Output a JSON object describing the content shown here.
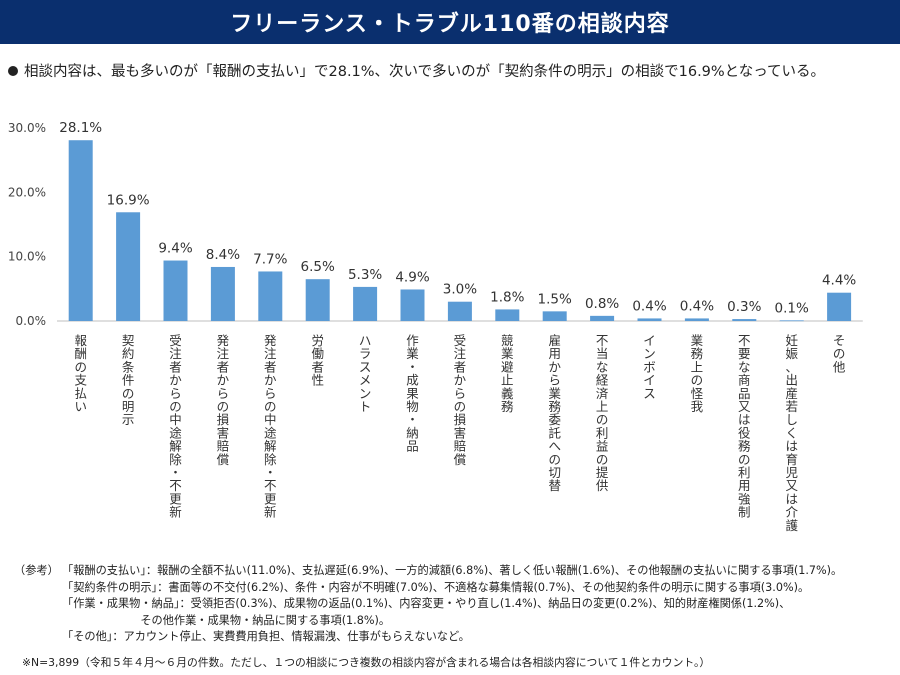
{
  "header": {
    "title": "フリーランス・トラブル110番の相談内容"
  },
  "lead": "相談内容は、最も多いのが「報酬の支払い」で28.1%、次いで多いのが「契約条件の明示」の相談で16.9%となっている。",
  "chart_data": {
    "type": "bar",
    "categories": [
      "報酬の支払い",
      "契約条件の明示",
      "受注者からの中途解除・不更新",
      "発注者からの損害賠償",
      "発注者からの中途解除・不更新",
      "労働者性",
      "ハラスメント",
      "作業・成果物・納品",
      "受注者からの損害賠償",
      "競業避止義務",
      "雇用から業務委託への切替",
      "不当な経済上の利益の提供",
      "インボイス",
      "業務上の怪我",
      "不要な商品又は役務の利用強制",
      "妊娠、出産若しくは育児又は介護",
      "その他"
    ],
    "values": [
      28.1,
      16.9,
      9.4,
      8.4,
      7.7,
      6.5,
      5.3,
      4.9,
      3.0,
      1.8,
      1.5,
      0.8,
      0.4,
      0.4,
      0.3,
      0.1,
      4.4
    ],
    "data_labels": [
      "28.1%",
      "16.9%",
      "9.4%",
      "8.4%",
      "7.7%",
      "6.5%",
      "5.3%",
      "4.9%",
      "3.0%",
      "1.8%",
      "1.5%",
      "0.8%",
      "0.4%",
      "0.4%",
      "0.3%",
      "0.1%",
      "4.4%"
    ],
    "yticks": [
      "0.0%",
      "10.0%",
      "20.0%",
      "30.0%"
    ],
    "ytick_values": [
      0,
      10,
      20,
      30
    ],
    "ylim": [
      0,
      30
    ],
    "bar_color": "#5b9bd5",
    "grid": false
  },
  "notes": {
    "prefix": "（参考）",
    "lines": [
      "「報酬の支払い」：報酬の全額不払い(11.0%)、支払遅延(6.9%)、一方的減額(6.8%)、著しく低い報酬(1.6%)、その他報酬の支払いに関する事項(1.7%)。",
      "「契約条件の明示」：書面等の不交付(6.2%)、条件・内容が不明確(7.0%)、不適格な募集情報(0.7%)、その他契約条件の明示に関する事項(3.0%)。",
      "「作業・成果物・納品」：受領拒否(0.3%)、成果物の返品(0.1%)、内容変更・やり直し(1.4%)、納品日の変更(0.2%)、知的財産権関係(1.2%)、",
      "　　　　　　　その他作業・成果物・納品に関する事項(1.8%)。",
      "「その他」：アカウント停止、実費費用負担、情報漏洩、仕事がもらえないなど。"
    ]
  },
  "footnote": "※N=3,899（令和５年４月～６月の件数。ただし、１つの相談につき複数の相談内容が含まれる場合は各相談内容について１件とカウント。）"
}
